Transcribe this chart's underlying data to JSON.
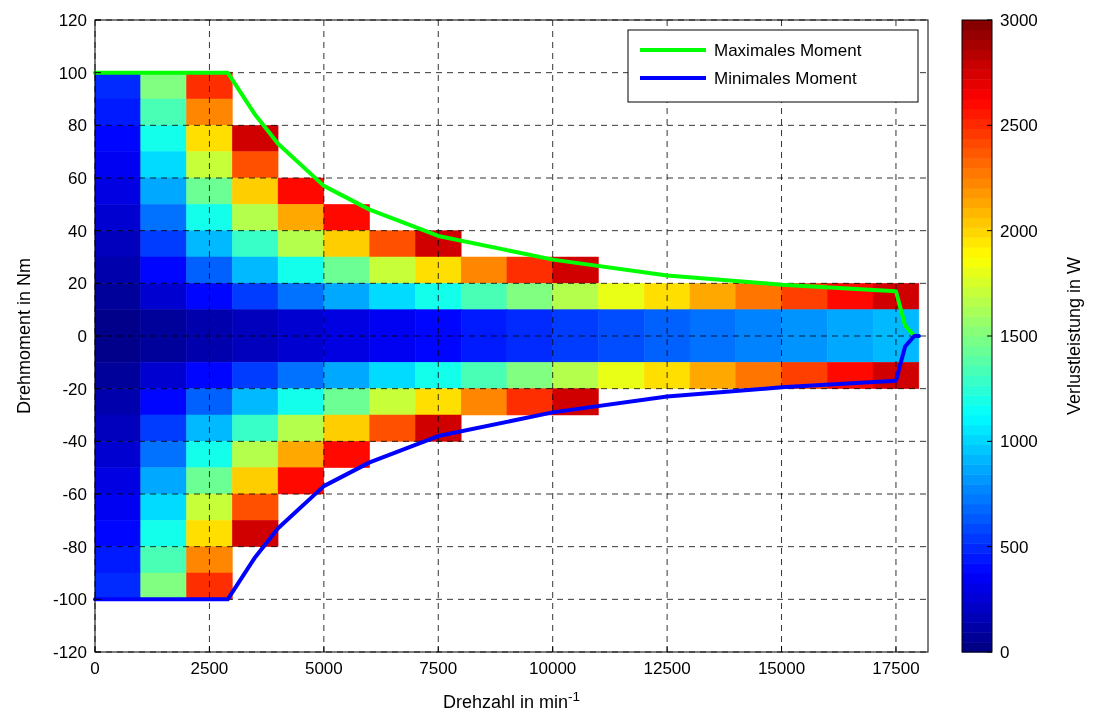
{
  "chart_data": {
    "type": "heatmap",
    "xlabel": "Drehzahl in min$^{-1}$",
    "ylabel": "Drehmoment in Nm",
    "clabel": "Verlustleistung in W",
    "xlim": [
      0,
      18200
    ],
    "xticks": [
      0,
      2500,
      5000,
      7500,
      10000,
      12500,
      15000,
      17500
    ],
    "ylim": [
      -120,
      120
    ],
    "yticks": [
      -120,
      -100,
      -80,
      -60,
      -40,
      -20,
      0,
      20,
      40,
      60,
      80,
      100,
      120
    ],
    "clim": [
      0,
      3000
    ],
    "cticks": [
      0,
      500,
      1000,
      1500,
      2000,
      2500,
      3000
    ],
    "grid": true,
    "legend": "top right",
    "x": [
      500,
      1500,
      2500,
      3500,
      4500,
      5500,
      6500,
      7500,
      8500,
      9500,
      10500,
      11500,
      12500,
      13500,
      14500,
      15500,
      16500,
      17500
    ],
    "y": [
      95,
      85,
      75,
      65,
      55,
      45,
      35,
      25,
      15,
      5,
      -5,
      -15,
      -25,
      -35,
      -45,
      -55,
      -65,
      -75,
      -85,
      -95
    ],
    "cells": [
      [
        500,
        1500,
        2490,
        null,
        null,
        null,
        null,
        null,
        null,
        null,
        null,
        null,
        null,
        null,
        null,
        null,
        null,
        null
      ],
      [
        450,
        1340,
        2230,
        null,
        null,
        null,
        null,
        null,
        null,
        null,
        null,
        null,
        null,
        null,
        null,
        null,
        null,
        null
      ],
      [
        390,
        1180,
        1970,
        2760,
        null,
        null,
        null,
        null,
        null,
        null,
        null,
        null,
        null,
        null,
        null,
        null,
        null,
        null
      ],
      [
        340,
        1020,
        1710,
        2390,
        null,
        null,
        null,
        null,
        null,
        null,
        null,
        null,
        null,
        null,
        null,
        null,
        null,
        null
      ],
      [
        290,
        870,
        1440,
        2020,
        2600,
        null,
        null,
        null,
        null,
        null,
        null,
        null,
        null,
        null,
        null,
        null,
        null,
        null
      ],
      [
        240,
        710,
        1180,
        1650,
        2130,
        2600,
        null,
        null,
        null,
        null,
        null,
        null,
        null,
        null,
        null,
        null,
        null,
        null
      ],
      [
        180,
        550,
        920,
        1290,
        1650,
        2020,
        2390,
        2760,
        null,
        null,
        null,
        null,
        null,
        null,
        null,
        null,
        null,
        null
      ],
      [
        130,
        390,
        660,
        920,
        1180,
        1440,
        1710,
        1970,
        2230,
        2490,
        2760,
        null,
        null,
        null,
        null,
        null,
        null,
        null
      ],
      [
        80,
        240,
        390,
        550,
        710,
        870,
        1020,
        1180,
        1340,
        1500,
        1650,
        1810,
        1970,
        2130,
        2280,
        2440,
        2600,
        2760
      ],
      [
        30,
        80,
        130,
        180,
        240,
        290,
        340,
        390,
        450,
        500,
        550,
        600,
        660,
        710,
        760,
        810,
        870,
        920
      ],
      [
        30,
        80,
        130,
        180,
        240,
        290,
        340,
        390,
        450,
        500,
        550,
        600,
        660,
        710,
        760,
        810,
        870,
        920
      ],
      [
        80,
        240,
        390,
        550,
        710,
        870,
        1020,
        1180,
        1340,
        1500,
        1650,
        1810,
        1970,
        2130,
        2280,
        2440,
        2600,
        2760
      ],
      [
        130,
        390,
        660,
        920,
        1180,
        1440,
        1710,
        1970,
        2230,
        2490,
        2760,
        null,
        null,
        null,
        null,
        null,
        null,
        null
      ],
      [
        180,
        550,
        920,
        1290,
        1650,
        2020,
        2390,
        2760,
        null,
        null,
        null,
        null,
        null,
        null,
        null,
        null,
        null,
        null
      ],
      [
        240,
        710,
        1180,
        1650,
        2130,
        2600,
        null,
        null,
        null,
        null,
        null,
        null,
        null,
        null,
        null,
        null,
        null,
        null
      ],
      [
        290,
        870,
        1440,
        2020,
        2600,
        null,
        null,
        null,
        null,
        null,
        null,
        null,
        null,
        null,
        null,
        null,
        null,
        null
      ],
      [
        340,
        1020,
        1710,
        2390,
        null,
        null,
        null,
        null,
        null,
        null,
        null,
        null,
        null,
        null,
        null,
        null,
        null,
        null
      ],
      [
        390,
        1180,
        1970,
        2760,
        null,
        null,
        null,
        null,
        null,
        null,
        null,
        null,
        null,
        null,
        null,
        null,
        null,
        null
      ],
      [
        450,
        1340,
        2230,
        null,
        null,
        null,
        null,
        null,
        null,
        null,
        null,
        null,
        null,
        null,
        null,
        null,
        null,
        null
      ],
      [
        500,
        1500,
        2490,
        null,
        null,
        null,
        null,
        null,
        null,
        null,
        null,
        null,
        null,
        null,
        null,
        null,
        null,
        null
      ]
    ],
    "series": [
      {
        "type": "line",
        "name": "Maximales Moment",
        "color": "#00ff00",
        "x": [
          0,
          2900,
          3500,
          4000,
          5000,
          6000,
          7500,
          10000,
          12500,
          15000,
          17500,
          17700,
          17900,
          18000
        ],
        "values": [
          100,
          100,
          84,
          73,
          57,
          48,
          38,
          29,
          23,
          19.5,
          17,
          4,
          0,
          0
        ]
      },
      {
        "type": "line",
        "name": "Minimales Moment",
        "color": "#0000ff",
        "x": [
          0,
          2900,
          3500,
          4000,
          5000,
          6000,
          7500,
          10000,
          12500,
          15000,
          17500,
          17700,
          17900,
          18000
        ],
        "values": [
          -100,
          -100,
          -84,
          -73,
          -57,
          -48,
          -38,
          -29,
          -23,
          -19.5,
          -17,
          -4,
          0,
          0
        ]
      }
    ]
  }
}
